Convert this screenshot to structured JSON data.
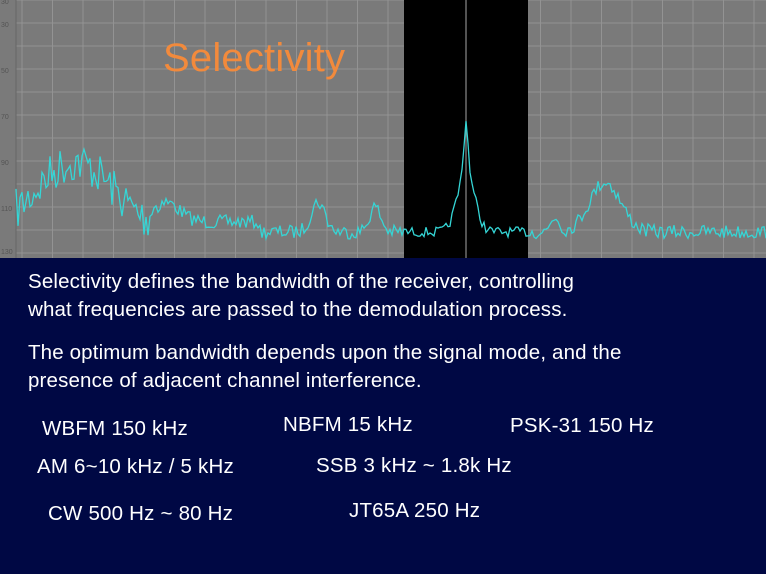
{
  "slide": {
    "title": "Selectivity",
    "paragraph1_line1": "Selectivity defines the bandwidth of the receiver, controlling",
    "paragraph1_line2": "what frequencies are passed to the demodulation process.",
    "paragraph2_line1": "The optimum bandwidth depends upon the signal mode, and the",
    "paragraph2_line2": "presence of adjacent channel interference."
  },
  "spectrum": {
    "axis_labels": [
      "30",
      "50",
      "70",
      "90",
      "110",
      "130"
    ],
    "colors": {
      "background": "#7a7a7a",
      "grid": "#9a9a9a",
      "trace": "#35d6d6",
      "passband": "#000000",
      "center_line": "#888888"
    }
  },
  "modes": [
    {
      "id": "wbfm",
      "text": "WBFM  150 kHz"
    },
    {
      "id": "nbfm",
      "text": "NBFM  15 kHz"
    },
    {
      "id": "psk31",
      "text": "PSK-31  150 Hz"
    },
    {
      "id": "am",
      "text": "AM 6~10 kHz  / 5 kHz"
    },
    {
      "id": "ssb",
      "text": "SSB 3 kHz ~ 1.8k Hz"
    },
    {
      "id": "cw",
      "text": "CW  500 Hz ~ 80 Hz"
    },
    {
      "id": "jt65a",
      "text": "JT65A  250 Hz"
    }
  ]
}
